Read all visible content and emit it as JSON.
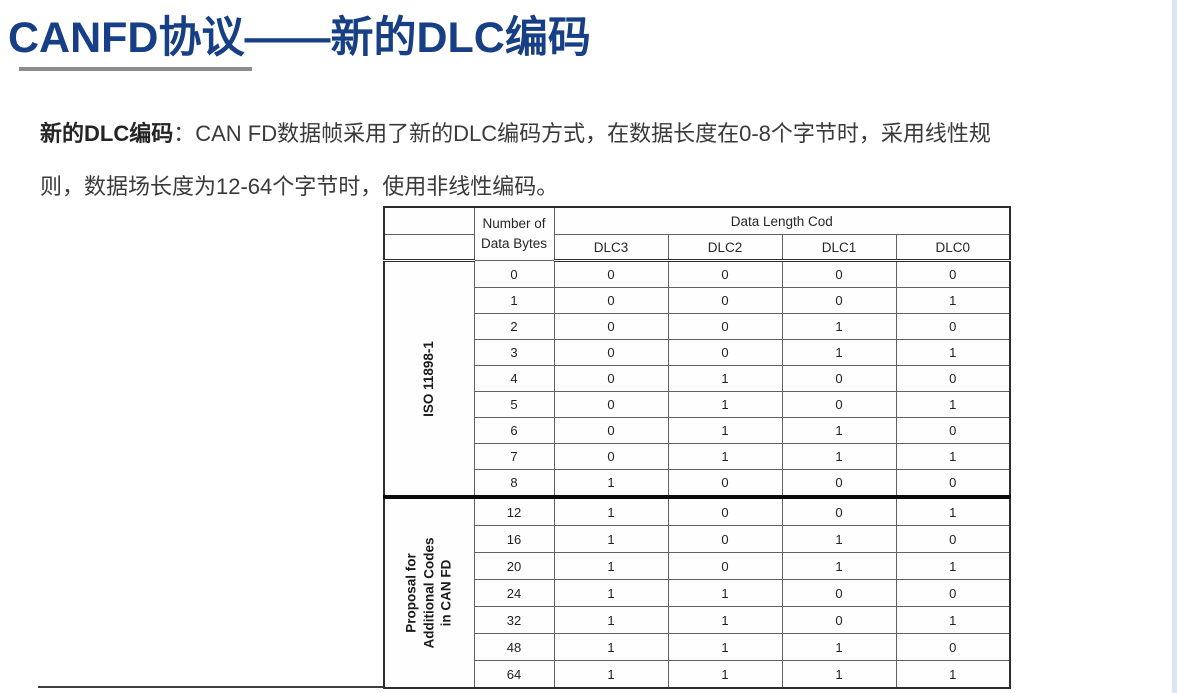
{
  "slide": {
    "title": "CANFD协议——新的DLC编码",
    "accent_color": "#173f85",
    "rule_color": "#8c8c8c",
    "paragraph": {
      "lead": "新的DLC编码",
      "line1_rest": "：CAN FD数据帧采用了新的DLC编码方式，在数据长度在0-8个字节时，采用线性规",
      "line2": "则，数据场长度为12-64个字节时，使用非线性编码。"
    }
  },
  "table": {
    "header": {
      "number_col_line1": "Number of",
      "number_col_line2": "Data Bytes",
      "group": "Data Length Cod",
      "dlc_cols": [
        "DLC3",
        "DLC2",
        "DLC1",
        "DLC0"
      ]
    },
    "sections": [
      {
        "label_lines": [
          "ISO 11898-1"
        ],
        "rows": [
          [
            "0",
            "0",
            "0",
            "0",
            "0"
          ],
          [
            "1",
            "0",
            "0",
            "0",
            "1"
          ],
          [
            "2",
            "0",
            "0",
            "1",
            "0"
          ],
          [
            "3",
            "0",
            "0",
            "1",
            "1"
          ],
          [
            "4",
            "0",
            "1",
            "0",
            "0"
          ],
          [
            "5",
            "0",
            "1",
            "0",
            "1"
          ],
          [
            "6",
            "0",
            "1",
            "1",
            "0"
          ],
          [
            "7",
            "0",
            "1",
            "1",
            "1"
          ],
          [
            "8",
            "1",
            "0",
            "0",
            "0"
          ]
        ]
      },
      {
        "label_lines": [
          "Proposal for",
          "Additional Codes",
          "in CAN FD"
        ],
        "rows": [
          [
            "12",
            "1",
            "0",
            "0",
            "1"
          ],
          [
            "16",
            "1",
            "0",
            "1",
            "0"
          ],
          [
            "20",
            "1",
            "0",
            "1",
            "1"
          ],
          [
            "24",
            "1",
            "1",
            "0",
            "0"
          ],
          [
            "32",
            "1",
            "1",
            "0",
            "1"
          ],
          [
            "48",
            "1",
            "1",
            "1",
            "0"
          ],
          [
            "64",
            "1",
            "1",
            "1",
            "1"
          ]
        ]
      }
    ]
  }
}
